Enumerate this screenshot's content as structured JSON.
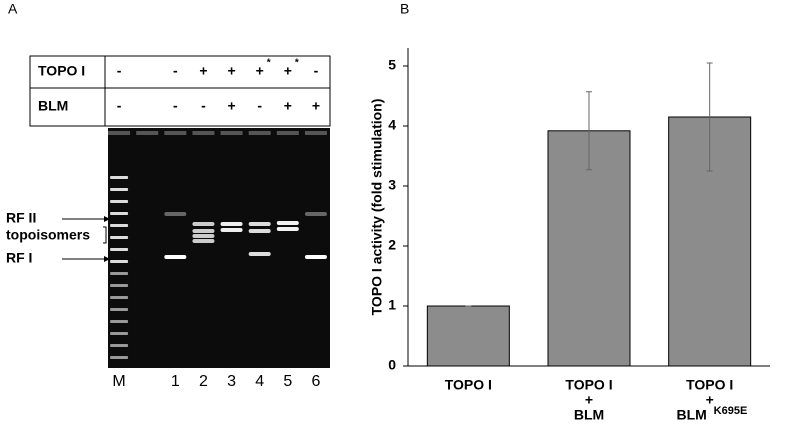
{
  "panel_a": {
    "label": "A",
    "table": {
      "rows": [
        {
          "label": "TOPO I",
          "cells": [
            {
              "sign": "-"
            },
            null,
            {
              "sign": "-"
            },
            {
              "sign": "+"
            },
            {
              "sign": "+"
            },
            {
              "sign": "+",
              "note": "*"
            },
            {
              "sign": "+",
              "note": "*"
            },
            {
              "sign": "-"
            }
          ]
        },
        {
          "label": "BLM",
          "cells": [
            {
              "sign": "-"
            },
            null,
            {
              "sign": "-"
            },
            {
              "sign": "-"
            },
            {
              "sign": "+"
            },
            {
              "sign": "-"
            },
            {
              "sign": "+"
            },
            {
              "sign": "+"
            }
          ]
        }
      ]
    },
    "lanes": [
      "M",
      null,
      "1",
      "2",
      "3",
      "4",
      "5",
      "6"
    ],
    "markers": [
      "RF II",
      "topoisomers",
      "RF I"
    ]
  },
  "chart_data": {
    "type": "bar",
    "panel_label": "B",
    "y_label": "TOPO I activity (fold stimulation)",
    "categories": [
      {
        "lines": [
          "TOPO I"
        ]
      },
      {
        "lines": [
          "TOPO I",
          "+",
          "BLM"
        ]
      },
      {
        "lines": [
          "TOPO I",
          "+",
          "BLM"
        ],
        "superscript": "K695E"
      }
    ],
    "values": [
      1.0,
      3.92,
      4.15
    ],
    "errors": [
      0,
      0.65,
      0.9
    ],
    "color": "#8c8c8c",
    "ylim": [
      0,
      5.3
    ],
    "yticks": [
      0,
      1,
      2,
      3,
      4,
      5
    ]
  }
}
